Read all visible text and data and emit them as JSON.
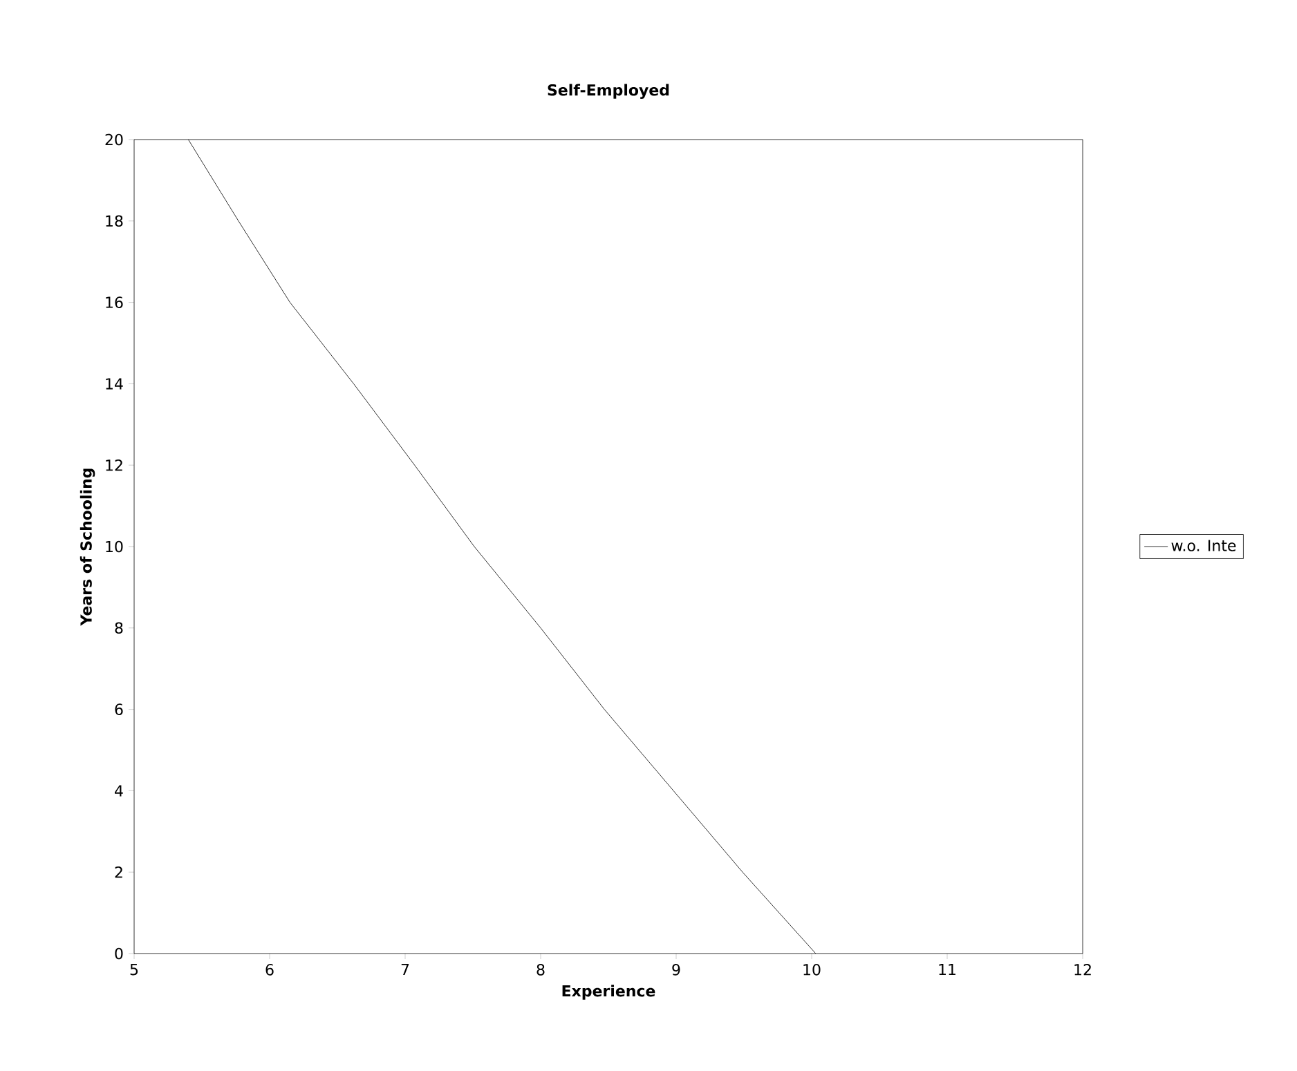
{
  "chart_data": {
    "type": "line",
    "title": "Self-Employed",
    "xlabel": "Experience",
    "ylabel": "Years of Schooling",
    "xlim": [
      5,
      12
    ],
    "xticks": [
      5,
      6,
      7,
      8,
      9,
      10,
      11,
      12
    ],
    "ylim": [
      0,
      20
    ],
    "yticks": [
      0,
      2,
      4,
      6,
      8,
      10,
      12,
      14,
      16,
      18,
      20
    ],
    "legend": "right",
    "grid": false,
    "marker": "none",
    "line_style": "solid",
    "series": [
      {
        "name": "w.o. Inte",
        "color": "#000000",
        "x": [
          5.4,
          5.77,
          6.15,
          6.62,
          7.07,
          7.51,
          8.0,
          8.47,
          8.98,
          9.49,
          10.03
        ],
        "values": [
          20,
          18,
          16,
          14,
          12,
          10,
          8,
          6,
          4,
          2,
          0
        ]
      }
    ]
  }
}
